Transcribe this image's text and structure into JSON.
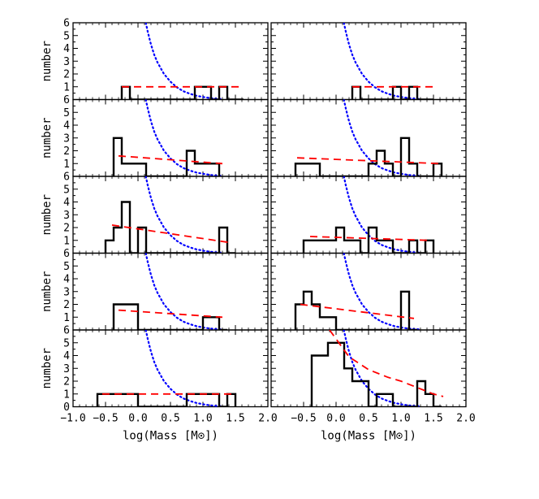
{
  "chart_data": {
    "type": "step",
    "layout": {
      "rows": 5,
      "cols": 2
    },
    "xlabel": "log(Mass [M⊙])",
    "ylabel": "number",
    "xlim": [
      -1.0,
      2.0
    ],
    "ylim": [
      0,
      6
    ],
    "x_tick_labels_left": [
      "−1.0",
      "−0.5",
      "0.0",
      "0.5",
      "1.0",
      "1.5",
      "2.0"
    ],
    "x_tick_labels_right": [
      "",
      "−0.5",
      "0.0",
      "0.5",
      "1.0",
      "1.5",
      "2.0"
    ],
    "x_ticks": [
      -1.0,
      -0.5,
      0.0,
      0.5,
      1.0,
      1.5,
      2.0
    ],
    "y_ticks": [
      1,
      2,
      3,
      4,
      5,
      6
    ],
    "y_ticks_bottom_panel": [
      0,
      1,
      2,
      3,
      4,
      5,
      6
    ],
    "colors": {
      "histogram": "#000000",
      "fit": "#ff0000",
      "dotted": "#0000ff"
    },
    "dotted_curve": {
      "x": [
        0.12,
        0.15,
        0.2,
        0.25,
        0.3,
        0.4,
        0.5,
        0.6,
        0.7,
        0.8,
        0.9,
        1.0,
        1.1,
        1.2,
        1.3
      ],
      "y": [
        6.0,
        5.3,
        4.3,
        3.5,
        2.9,
        2.0,
        1.4,
        0.95,
        0.65,
        0.45,
        0.3,
        0.2,
        0.12,
        0.07,
        0.04
      ]
    },
    "panels": [
      {
        "name": "row1-left",
        "hist": {
          "edges": [
            -0.25,
            -0.125,
            0.0,
            0.125,
            0.25,
            0.375,
            0.5,
            0.625,
            0.75,
            0.875,
            1.0,
            1.125,
            1.25,
            1.375,
            1.5,
            1.625
          ],
          "counts": [
            1,
            0,
            0,
            0,
            0,
            0,
            0,
            0,
            0,
            1,
            1,
            0,
            1,
            0,
            0
          ]
        },
        "fit": {
          "x": [
            -0.25,
            1.6
          ],
          "y": [
            1.0,
            1.0
          ]
        }
      },
      {
        "name": "row1-right",
        "hist": {
          "edges": [
            0.25,
            0.375,
            0.5,
            0.625,
            0.75,
            0.875,
            1.0,
            1.125,
            1.25,
            1.375,
            1.5
          ],
          "counts": [
            1,
            0,
            0,
            0,
            0,
            1,
            0,
            1,
            0,
            0
          ]
        },
        "fit": {
          "x": [
            0.25,
            1.55
          ],
          "y": [
            1.0,
            1.0
          ]
        }
      },
      {
        "name": "row2-left",
        "hist": {
          "edges": [
            -0.375,
            -0.25,
            -0.125,
            0.0,
            0.125,
            0.25,
            0.375,
            0.5,
            0.625,
            0.75,
            0.875,
            1.0,
            1.125,
            1.25
          ],
          "counts": [
            3,
            1,
            1,
            1,
            0,
            0,
            0,
            0,
            0,
            2,
            1,
            1,
            1
          ]
        },
        "fit": {
          "x": [
            -0.3,
            1.3
          ],
          "y": [
            1.6,
            1.0
          ]
        }
      },
      {
        "name": "row2-right",
        "hist": {
          "edges": [
            -0.625,
            -0.25,
            0.0,
            0.25,
            0.5,
            0.625,
            0.75,
            0.875,
            1.0,
            1.125,
            1.25,
            1.375,
            1.5,
            1.625
          ],
          "counts": [
            1,
            0,
            0,
            0,
            1,
            2,
            1,
            0,
            3,
            1,
            0,
            0,
            1
          ]
        },
        "fit": {
          "x": [
            -0.6,
            1.6
          ],
          "y": [
            1.45,
            1.0
          ]
        }
      },
      {
        "name": "row3-left",
        "hist": {
          "edges": [
            -0.5,
            -0.375,
            -0.25,
            -0.125,
            0.0,
            0.125,
            0.25,
            0.375,
            0.5,
            0.625,
            0.75,
            0.875,
            1.0,
            1.125,
            1.25,
            1.375,
            1.5
          ],
          "counts": [
            1,
            2,
            4,
            0,
            2,
            0,
            0,
            0,
            0,
            0,
            0,
            0,
            0,
            0,
            2,
            0
          ]
        },
        "fit": {
          "x": [
            -0.4,
            1.45
          ],
          "y": [
            2.2,
            0.8
          ]
        }
      },
      {
        "name": "row3-right",
        "hist": {
          "edges": [
            -0.5,
            -0.125,
            0.0,
            0.125,
            0.25,
            0.375,
            0.5,
            0.625,
            0.75,
            0.875,
            1.0,
            1.125,
            1.25,
            1.375,
            1.5
          ],
          "counts": [
            1,
            1,
            2,
            1,
            1,
            0,
            2,
            1,
            1,
            0,
            0,
            1,
            0,
            1
          ]
        },
        "fit": {
          "x": [
            -0.4,
            1.45
          ],
          "y": [
            1.3,
            1.0
          ]
        }
      },
      {
        "name": "row4-left",
        "hist": {
          "edges": [
            -0.375,
            -0.25,
            0.0,
            0.125,
            0.25,
            0.375,
            0.5,
            0.625,
            0.75,
            0.875,
            1.0,
            1.25,
            1.375
          ],
          "counts": [
            2,
            2,
            0,
            0,
            0,
            0,
            0,
            0,
            0,
            0,
            1,
            0
          ]
        },
        "fit": {
          "x": [
            -0.3,
            1.3
          ],
          "y": [
            1.55,
            1.0
          ]
        }
      },
      {
        "name": "row4-right",
        "hist": {
          "edges": [
            -0.625,
            -0.5,
            -0.375,
            -0.25,
            0.0,
            0.125,
            0.25,
            0.375,
            0.5,
            0.625,
            0.75,
            0.875,
            1.0,
            1.125,
            1.25
          ],
          "counts": [
            2,
            3,
            2,
            1,
            0,
            0,
            0,
            0,
            0,
            0,
            0,
            0,
            3,
            0
          ]
        },
        "fit": {
          "x": [
            -0.55,
            1.2
          ],
          "y": [
            2.0,
            0.9
          ]
        }
      },
      {
        "name": "row5-left",
        "hist": {
          "edges": [
            -0.625,
            -0.125,
            0.0,
            0.125,
            0.25,
            0.375,
            0.5,
            0.625,
            0.75,
            0.875,
            1.0,
            1.125,
            1.25,
            1.375,
            1.5
          ],
          "counts": [
            1,
            1,
            0,
            0,
            0,
            0,
            0,
            0,
            1,
            1,
            1,
            1,
            0,
            1
          ]
        },
        "fit": {
          "x": [
            -0.55,
            1.5
          ],
          "y": [
            1.0,
            1.0
          ]
        }
      },
      {
        "name": "row5-right",
        "hist": {
          "edges": [
            -0.375,
            -0.125,
            0.0,
            0.125,
            0.25,
            0.375,
            0.5,
            0.625,
            0.75,
            0.875,
            1.0,
            1.125,
            1.25,
            1.375,
            1.5,
            1.625
          ],
          "counts": [
            4,
            5,
            5,
            3,
            2,
            2,
            0,
            1,
            1,
            0,
            0,
            0,
            2,
            1,
            0
          ]
        },
        "fit": {
          "x": [
            -0.1,
            0.2,
            0.5,
            0.8,
            1.0,
            1.2,
            1.5,
            1.65
          ],
          "y": [
            6.0,
            3.9,
            2.9,
            2.3,
            2.0,
            1.6,
            1.0,
            0.8
          ]
        }
      }
    ]
  }
}
